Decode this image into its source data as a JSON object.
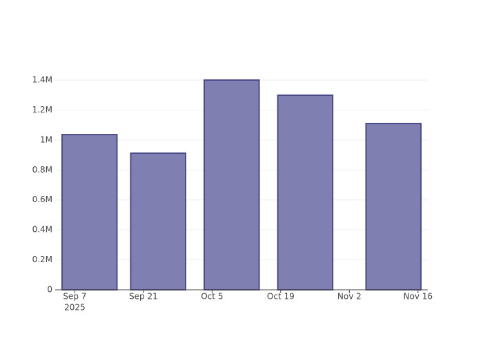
{
  "chart_data": {
    "type": "bar",
    "x": [
      "2025-09-10",
      "2025-09-24",
      "2025-10-09",
      "2025-10-24",
      "2025-11-11"
    ],
    "values": [
      1036000,
      912000,
      1400000,
      1299000,
      1110000
    ],
    "color": "#7f7fb2",
    "edge_color": "#4b4b88",
    "xlim": [
      "2025-09-03",
      "2025-11-18"
    ],
    "xticks": [
      {
        "value": "2025-09-07",
        "label": "Sep 7",
        "year": "2025"
      },
      {
        "value": "2025-09-21",
        "label": "Sep 21"
      },
      {
        "value": "2025-10-05",
        "label": "Oct 5"
      },
      {
        "value": "2025-10-19",
        "label": "Oct 19"
      },
      {
        "value": "2025-11-02",
        "label": "Nov 2"
      },
      {
        "value": "2025-11-16",
        "label": "Nov 16"
      }
    ],
    "ylim": [
      0,
      1474000
    ],
    "yticks": [
      0,
      {
        "value": 200000,
        "label": "0.2M"
      },
      {
        "value": 400000,
        "label": "0.4M"
      },
      {
        "value": 600000,
        "label": "0.6M"
      },
      {
        "value": 800000,
        "label": "0.8M"
      },
      {
        "value": 1000000,
        "label": "1M"
      },
      {
        "value": 1200000,
        "label": "1.2M"
      },
      {
        "value": 1400000,
        "label": "1.4M"
      }
    ],
    "grid": true
  }
}
